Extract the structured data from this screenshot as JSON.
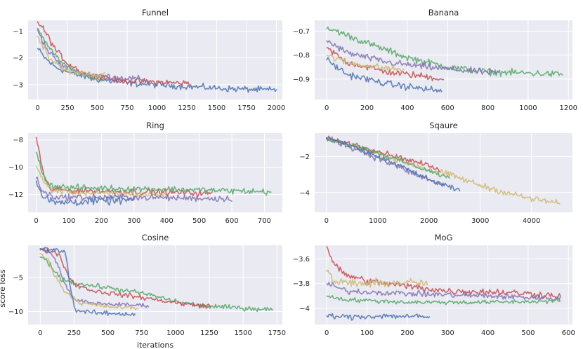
{
  "chart_data": [
    {
      "id": "funnel",
      "type": "line",
      "title": "Funnel",
      "xlabel": "",
      "ylabel": "",
      "xlim": [
        -80,
        2050
      ],
      "ylim": [
        -3.55,
        -0.6
      ],
      "xticks": [
        0,
        250,
        500,
        750,
        1000,
        1250,
        1500,
        1750,
        2000
      ],
      "yticks": [
        -1,
        -2,
        -3
      ],
      "series": [
        {
          "color": "#4c72b0",
          "noise": 0.1,
          "points": [
            [
              0,
              -1.65
            ],
            [
              60,
              -2.0
            ],
            [
              150,
              -2.35
            ],
            [
              300,
              -2.6
            ],
            [
              500,
              -2.8
            ],
            [
              800,
              -2.95
            ],
            [
              1200,
              -3.05
            ],
            [
              1600,
              -3.15
            ],
            [
              2000,
              -3.2
            ]
          ]
        },
        {
          "color": "#c44e52",
          "noise": 0.1,
          "points": [
            [
              0,
              -0.65
            ],
            [
              60,
              -1.0
            ],
            [
              150,
              -1.7
            ],
            [
              250,
              -2.2
            ],
            [
              400,
              -2.6
            ],
            [
              700,
              -2.85
            ],
            [
              1000,
              -2.9
            ],
            [
              1270,
              -2.95
            ]
          ]
        },
        {
          "color": "#8172b2",
          "noise": 0.1,
          "points": [
            [
              0,
              -0.95
            ],
            [
              80,
              -1.7
            ],
            [
              200,
              -2.3
            ],
            [
              400,
              -2.6
            ],
            [
              700,
              -2.75
            ],
            [
              900,
              -2.8
            ]
          ]
        },
        {
          "color": "#55a868",
          "noise": 0.08,
          "points": [
            [
              0,
              -0.9
            ],
            [
              80,
              -1.5
            ],
            [
              200,
              -2.2
            ],
            [
              350,
              -2.6
            ],
            [
              500,
              -2.8
            ],
            [
              560,
              -2.8
            ]
          ]
        },
        {
          "color": "#ccb974",
          "noise": 0.1,
          "points": [
            [
              0,
              -1.2
            ],
            [
              100,
              -2.0
            ],
            [
              250,
              -2.5
            ],
            [
              400,
              -2.6
            ],
            [
              560,
              -2.65
            ]
          ]
        }
      ]
    },
    {
      "id": "banana",
      "type": "line",
      "title": "Banana",
      "xlabel": "",
      "ylabel": "",
      "xlim": [
        -60,
        1220
      ],
      "ylim": [
        -0.985,
        -0.655
      ],
      "xticks": [
        0,
        200,
        400,
        600,
        800,
        1000,
        1200
      ],
      "yticks": [
        -0.7,
        -0.8,
        -0.9
      ],
      "series": [
        {
          "color": "#55a868",
          "noise": 0.012,
          "points": [
            [
              0,
              -0.69
            ],
            [
              50,
              -0.7
            ],
            [
              200,
              -0.75
            ],
            [
              400,
              -0.81
            ],
            [
              600,
              -0.85
            ],
            [
              800,
              -0.87
            ],
            [
              1000,
              -0.875
            ],
            [
              1170,
              -0.88
            ]
          ]
        },
        {
          "color": "#8172b2",
          "noise": 0.012,
          "points": [
            [
              0,
              -0.74
            ],
            [
              100,
              -0.79
            ],
            [
              300,
              -0.83
            ],
            [
              500,
              -0.85
            ],
            [
              700,
              -0.865
            ],
            [
              850,
              -0.875
            ]
          ]
        },
        {
          "color": "#c44e52",
          "noise": 0.012,
          "points": [
            [
              0,
              -0.77
            ],
            [
              100,
              -0.83
            ],
            [
              300,
              -0.87
            ],
            [
              500,
              -0.89
            ],
            [
              580,
              -0.9
            ]
          ]
        },
        {
          "color": "#ccb974",
          "noise": 0.012,
          "points": [
            [
              0,
              -0.8
            ],
            [
              100,
              -0.83
            ],
            [
              250,
              -0.85
            ],
            [
              380,
              -0.86
            ]
          ]
        },
        {
          "color": "#4c72b0",
          "noise": 0.012,
          "points": [
            [
              0,
              -0.82
            ],
            [
              100,
              -0.88
            ],
            [
              300,
              -0.92
            ],
            [
              570,
              -0.95
            ]
          ]
        }
      ]
    },
    {
      "id": "ring",
      "type": "line",
      "title": "Ring",
      "xlabel": "",
      "ylabel": "",
      "xlim": [
        -25,
        755
      ],
      "ylim": [
        -13.3,
        -7.5
      ],
      "xticks": [
        0,
        100,
        200,
        300,
        400,
        500,
        600,
        700
      ],
      "yticks": [
        -8,
        -10,
        -12
      ],
      "series": [
        {
          "color": "#c44e52",
          "noise": 0.2,
          "points": [
            [
              0,
              -7.8
            ],
            [
              10,
              -9.0
            ],
            [
              25,
              -10.8
            ],
            [
              45,
              -11.6
            ],
            [
              100,
              -11.7
            ],
            [
              300,
              -11.8
            ],
            [
              540,
              -11.9
            ]
          ]
        },
        {
          "color": "#55a868",
          "noise": 0.2,
          "points": [
            [
              0,
              -8.9
            ],
            [
              20,
              -10.5
            ],
            [
              40,
              -11.3
            ],
            [
              100,
              -11.5
            ],
            [
              400,
              -11.6
            ],
            [
              720,
              -11.8
            ]
          ]
        },
        {
          "color": "#ccb974",
          "noise": 0.2,
          "points": [
            [
              0,
              -9.9
            ],
            [
              20,
              -11.0
            ],
            [
              50,
              -11.7
            ],
            [
              150,
              -11.9
            ],
            [
              400,
              -12.0
            ]
          ]
        },
        {
          "color": "#8172b2",
          "noise": 0.2,
          "points": [
            [
              0,
              -10.8
            ],
            [
              20,
              -11.8
            ],
            [
              60,
              -12.2
            ],
            [
              300,
              -12.2
            ],
            [
              600,
              -12.3
            ]
          ]
        },
        {
          "color": "#4c72b0",
          "noise": 0.25,
          "points": [
            [
              0,
              -11.0
            ],
            [
              20,
              -12.2
            ],
            [
              60,
              -12.6
            ],
            [
              150,
              -12.5
            ],
            [
              300,
              -12.4
            ]
          ]
        }
      ]
    },
    {
      "id": "sqaure",
      "type": "line",
      "title": "Sqaure",
      "xlabel": "",
      "ylabel": "",
      "xlim": [
        -230,
        4800
      ],
      "ylim": [
        -5.1,
        -0.7
      ],
      "xticks": [
        0,
        1000,
        2000,
        3000,
        4000
      ],
      "yticks": [
        -2,
        -4
      ],
      "series": [
        {
          "color": "#ccb974",
          "noise": 0.15,
          "points": [
            [
              0,
              -1.0
            ],
            [
              500,
              -1.4
            ],
            [
              1000,
              -1.8
            ],
            [
              1500,
              -2.3
            ],
            [
              2000,
              -2.7
            ],
            [
              2500,
              -3.1
            ],
            [
              3000,
              -3.6
            ],
            [
              3500,
              -4.0
            ],
            [
              4000,
              -4.35
            ],
            [
              4550,
              -4.6
            ]
          ]
        },
        {
          "color": "#c44e52",
          "noise": 0.12,
          "points": [
            [
              0,
              -1.0
            ],
            [
              500,
              -1.3
            ],
            [
              1000,
              -1.7
            ],
            [
              1500,
              -2.1
            ],
            [
              2000,
              -2.5
            ],
            [
              2200,
              -2.8
            ]
          ]
        },
        {
          "color": "#55a868",
          "noise": 0.12,
          "points": [
            [
              0,
              -1.0
            ],
            [
              500,
              -1.35
            ],
            [
              1000,
              -1.8
            ],
            [
              1500,
              -2.3
            ],
            [
              2000,
              -2.8
            ],
            [
              2400,
              -3.2
            ]
          ]
        },
        {
          "color": "#8172b2",
          "noise": 0.15,
          "points": [
            [
              0,
              -0.95
            ],
            [
              500,
              -1.5
            ],
            [
              1000,
              -2.1
            ],
            [
              1500,
              -2.7
            ],
            [
              2000,
              -3.3
            ],
            [
              2300,
              -3.6
            ]
          ]
        },
        {
          "color": "#4c72b0",
          "noise": 0.12,
          "points": [
            [
              0,
              -0.95
            ],
            [
              500,
              -1.45
            ],
            [
              1000,
              -2.0
            ],
            [
              1500,
              -2.6
            ],
            [
              2000,
              -3.3
            ],
            [
              2600,
              -3.9
            ]
          ]
        }
      ]
    },
    {
      "id": "cosine",
      "type": "line",
      "title": "Cosine",
      "xlabel": "iterations",
      "ylabel": "score loss",
      "xlim": [
        -90,
        1790
      ],
      "ylim": [
        -11.9,
        -0.3
      ],
      "xticks": [
        0,
        250,
        500,
        750,
        1000,
        1250,
        1500,
        1750
      ],
      "yticks": [
        -5,
        -10
      ],
      "series": [
        {
          "color": "#55a868",
          "noise": 0.3,
          "points": [
            [
              0,
              -2.0
            ],
            [
              50,
              -2.5
            ],
            [
              100,
              -4.0
            ],
            [
              150,
              -5.2
            ],
            [
              300,
              -6.0
            ],
            [
              500,
              -6.5
            ],
            [
              800,
              -7.5
            ],
            [
              1000,
              -8.5
            ],
            [
              1200,
              -9.2
            ],
            [
              1500,
              -9.5
            ],
            [
              1720,
              -9.7
            ]
          ]
        },
        {
          "color": "#c44e52",
          "noise": 0.3,
          "points": [
            [
              0,
              -1.0
            ],
            [
              100,
              -1.2
            ],
            [
              150,
              -2.0
            ],
            [
              200,
              -4.5
            ],
            [
              250,
              -6.0
            ],
            [
              400,
              -7.0
            ],
            [
              700,
              -7.8
            ],
            [
              900,
              -8.4
            ],
            [
              1100,
              -9.0
            ],
            [
              1260,
              -9.2
            ]
          ]
        },
        {
          "color": "#8172b2",
          "noise": 0.25,
          "points": [
            [
              0,
              -0.8
            ],
            [
              80,
              -1.5
            ],
            [
              130,
              -3.0
            ],
            [
              180,
              -6.0
            ],
            [
              250,
              -8.3
            ],
            [
              400,
              -8.8
            ],
            [
              600,
              -9.0
            ],
            [
              800,
              -9.1
            ]
          ]
        },
        {
          "color": "#ccb974",
          "noise": 0.25,
          "points": [
            [
              0,
              -1.5
            ],
            [
              60,
              -2.5
            ],
            [
              100,
              -4.5
            ],
            [
              180,
              -7.0
            ],
            [
              300,
              -8.8
            ],
            [
              500,
              -9.3
            ],
            [
              720,
              -9.5
            ]
          ]
        },
        {
          "color": "#4c72b0",
          "noise": 0.3,
          "points": [
            [
              0,
              -0.8
            ],
            [
              100,
              -1.0
            ],
            [
              180,
              -1.1
            ],
            [
              200,
              -3.0
            ],
            [
              230,
              -7.5
            ],
            [
              260,
              -9.8
            ],
            [
              400,
              -10.2
            ],
            [
              700,
              -10.4
            ]
          ]
        }
      ]
    },
    {
      "id": "mog",
      "type": "line",
      "title": "MoG",
      "xlabel": "",
      "ylabel": "",
      "xlim": [
        -30,
        610
      ],
      "ylim": [
        -4.13,
        -3.49
      ],
      "xticks": [
        0,
        100,
        200,
        300,
        400,
        500,
        600
      ],
      "yticks": [
        -3.6,
        -3.8,
        -4.0
      ],
      "series": [
        {
          "color": "#c44e52",
          "noise": 0.025,
          "points": [
            [
              0,
              -3.5
            ],
            [
              15,
              -3.62
            ],
            [
              40,
              -3.72
            ],
            [
              100,
              -3.78
            ],
            [
              200,
              -3.82
            ],
            [
              300,
              -3.86
            ],
            [
              450,
              -3.87
            ],
            [
              580,
              -3.9
            ]
          ]
        },
        {
          "color": "#ccb974",
          "noise": 0.03,
          "points": [
            [
              0,
              -3.7
            ],
            [
              20,
              -3.79
            ],
            [
              100,
              -3.8
            ],
            [
              200,
              -3.79
            ],
            [
              250,
              -3.8
            ]
          ]
        },
        {
          "color": "#8172b2",
          "noise": 0.02,
          "points": [
            [
              0,
              -3.8
            ],
            [
              50,
              -3.86
            ],
            [
              200,
              -3.88
            ],
            [
              400,
              -3.9
            ],
            [
              580,
              -3.92
            ]
          ]
        },
        {
          "color": "#55a868",
          "noise": 0.015,
          "points": [
            [
              0,
              -3.9
            ],
            [
              50,
              -3.93
            ],
            [
              200,
              -3.95
            ],
            [
              400,
              -3.95
            ],
            [
              580,
              -3.94
            ]
          ]
        },
        {
          "color": "#4c72b0",
          "noise": 0.02,
          "points": [
            [
              0,
              -4.06
            ],
            [
              50,
              -4.07
            ],
            [
              150,
              -4.06
            ],
            [
              255,
              -4.07
            ]
          ]
        }
      ]
    }
  ]
}
